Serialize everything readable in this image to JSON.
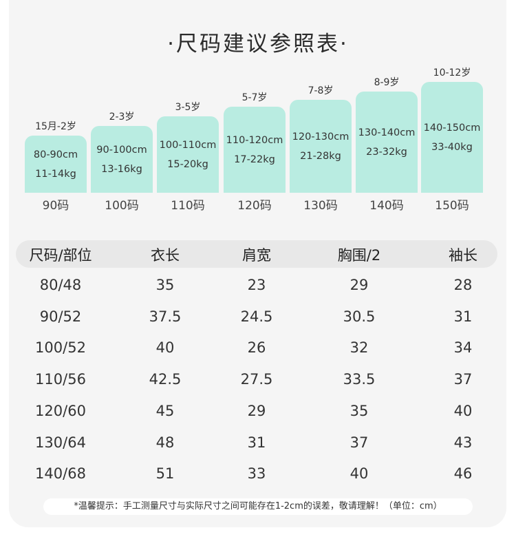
{
  "title": "·尺码建议参照表·",
  "sizes": [
    {
      "age": "15月-2岁",
      "height": "80-90cm",
      "weight": "11-14kg",
      "label": "90码"
    },
    {
      "age": "2-3岁",
      "height": "90-100cm",
      "weight": "13-16kg",
      "label": "100码"
    },
    {
      "age": "3-5岁",
      "height": "100-110cm",
      "weight": "15-20kg",
      "label": "110码"
    },
    {
      "age": "5-7岁",
      "height": "110-120cm",
      "weight": "17-22kg",
      "label": "120码"
    },
    {
      "age": "7-8岁",
      "height": "120-130cm",
      "weight": "21-28kg",
      "label": "130码"
    },
    {
      "age": "8-9岁",
      "height": "130-140cm",
      "weight": "23-32kg",
      "label": "140码"
    },
    {
      "age": "10-12岁",
      "height": "140-150cm",
      "weight": "33-40kg",
      "label": "150码"
    }
  ],
  "table": {
    "headers": [
      "尺码/部位",
      "衣长",
      "肩宽",
      "胸围/2",
      "袖长"
    ],
    "rows": [
      [
        "80/48",
        "35",
        "23",
        "29",
        "28"
      ],
      [
        "90/52",
        "37.5",
        "24.5",
        "30.5",
        "31"
      ],
      [
        "100/52",
        "40",
        "26",
        "32",
        "34"
      ],
      [
        "110/56",
        "42.5",
        "27.5",
        "33.5",
        "37"
      ],
      [
        "120/60",
        "45",
        "29",
        "35",
        "40"
      ],
      [
        "130/64",
        "48",
        "31",
        "37",
        "43"
      ],
      [
        "140/68",
        "51",
        "33",
        "40",
        "46"
      ]
    ]
  },
  "note": "*温馨提示：手工测量尺寸与实际尺寸之间可能存在1-2cm的误差，敬请理解！（单位：cm）",
  "colors": {
    "bar": "#b9ece1",
    "card": "#f5f5f5",
    "header": "#e8e8e8"
  }
}
